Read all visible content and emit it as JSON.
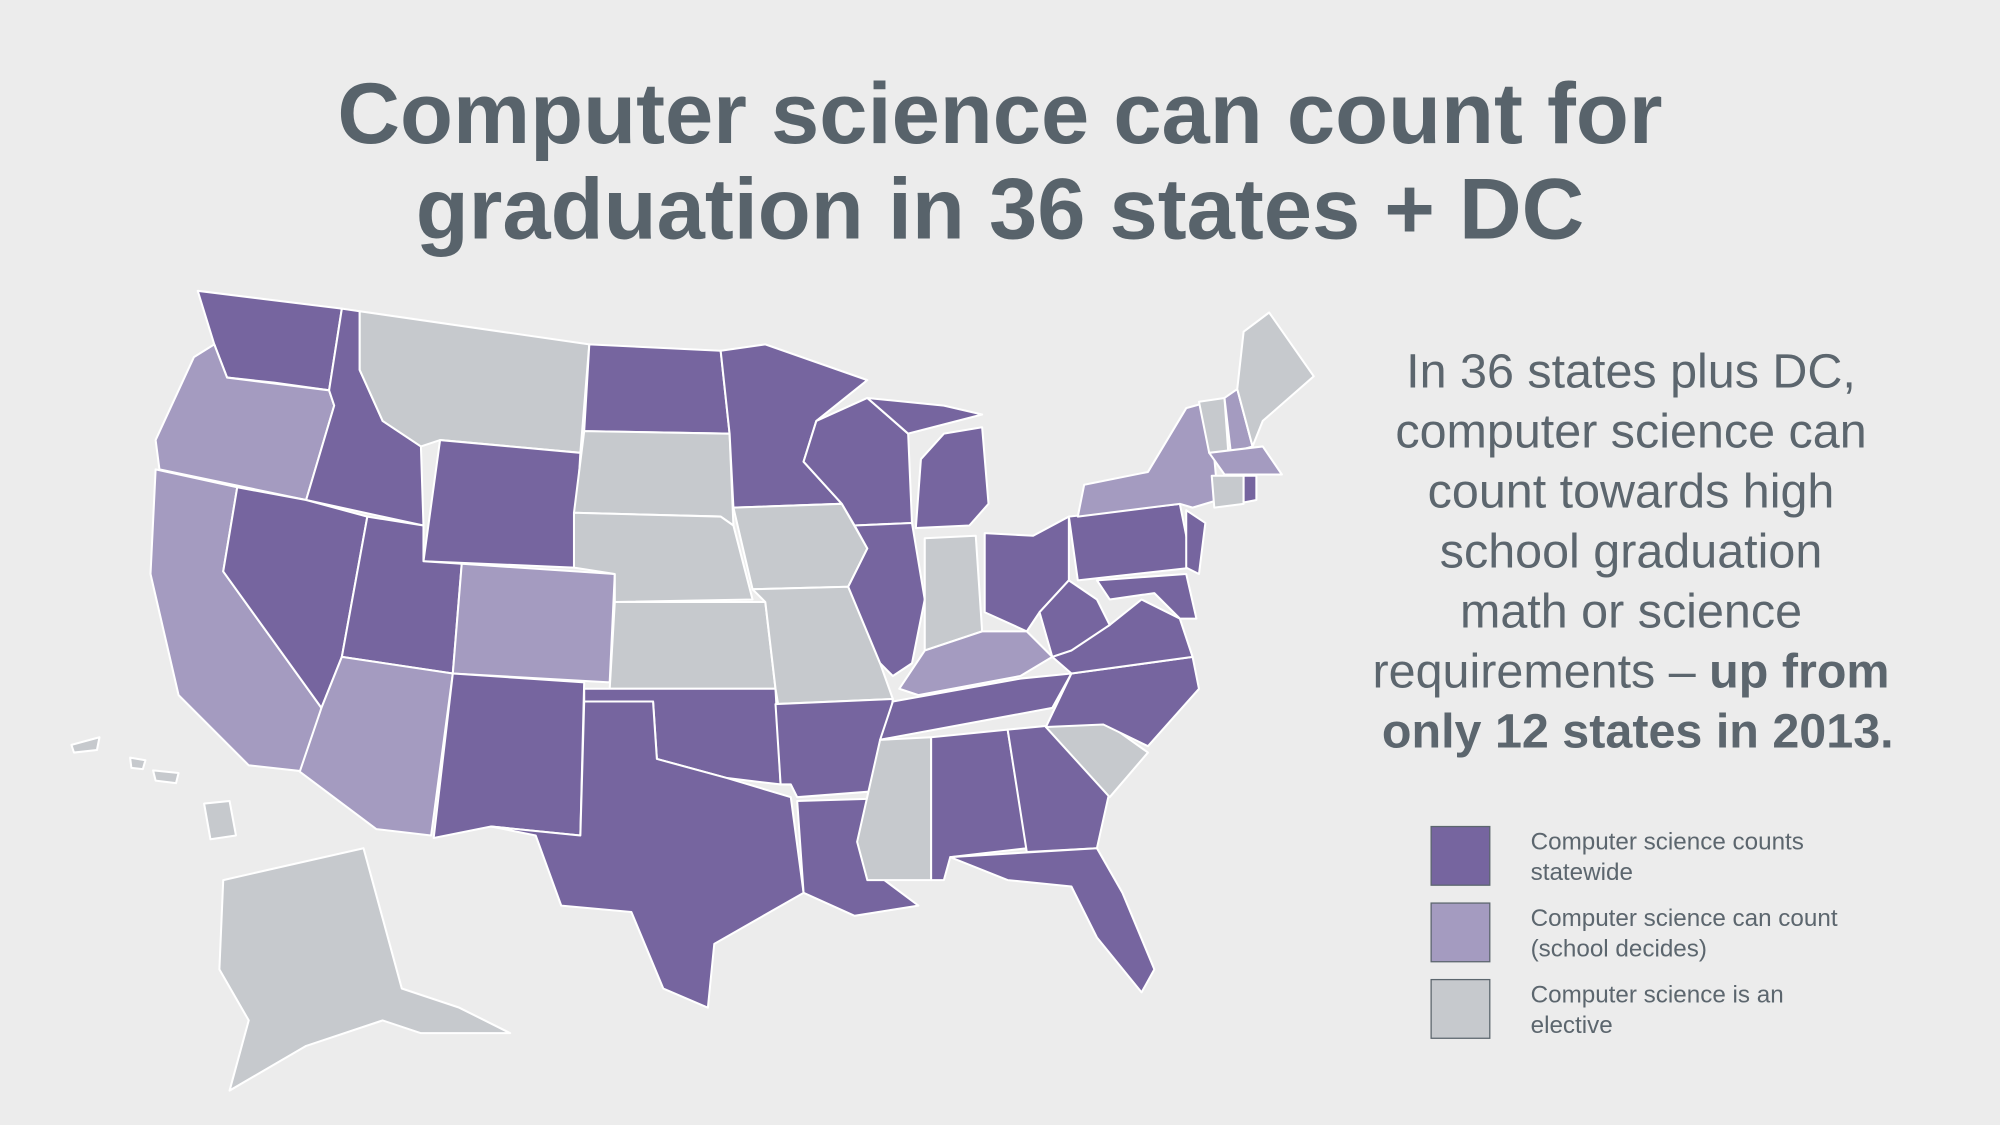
{
  "title": {
    "lines": [
      "Computer science can count for",
      "graduation in 36 states + DC"
    ]
  },
  "description": {
    "lines": [
      "In 36 states plus DC,",
      "computer science can",
      "count towards high",
      "school graduation",
      "math or science",
      "requirements –"
    ],
    "emphasis": [
      "up from",
      "only 12 states in 2013."
    ]
  },
  "legend": {
    "items": [
      {
        "color": "#76659f",
        "label": [
          "Computer science counts",
          "statewide"
        ]
      },
      {
        "color": "#a49bc0",
        "label": [
          "Computer science can count",
          "(school decides)"
        ]
      },
      {
        "color": "#c6c9cd",
        "label": [
          "Computer science is an",
          "elective"
        ]
      }
    ]
  }
}
